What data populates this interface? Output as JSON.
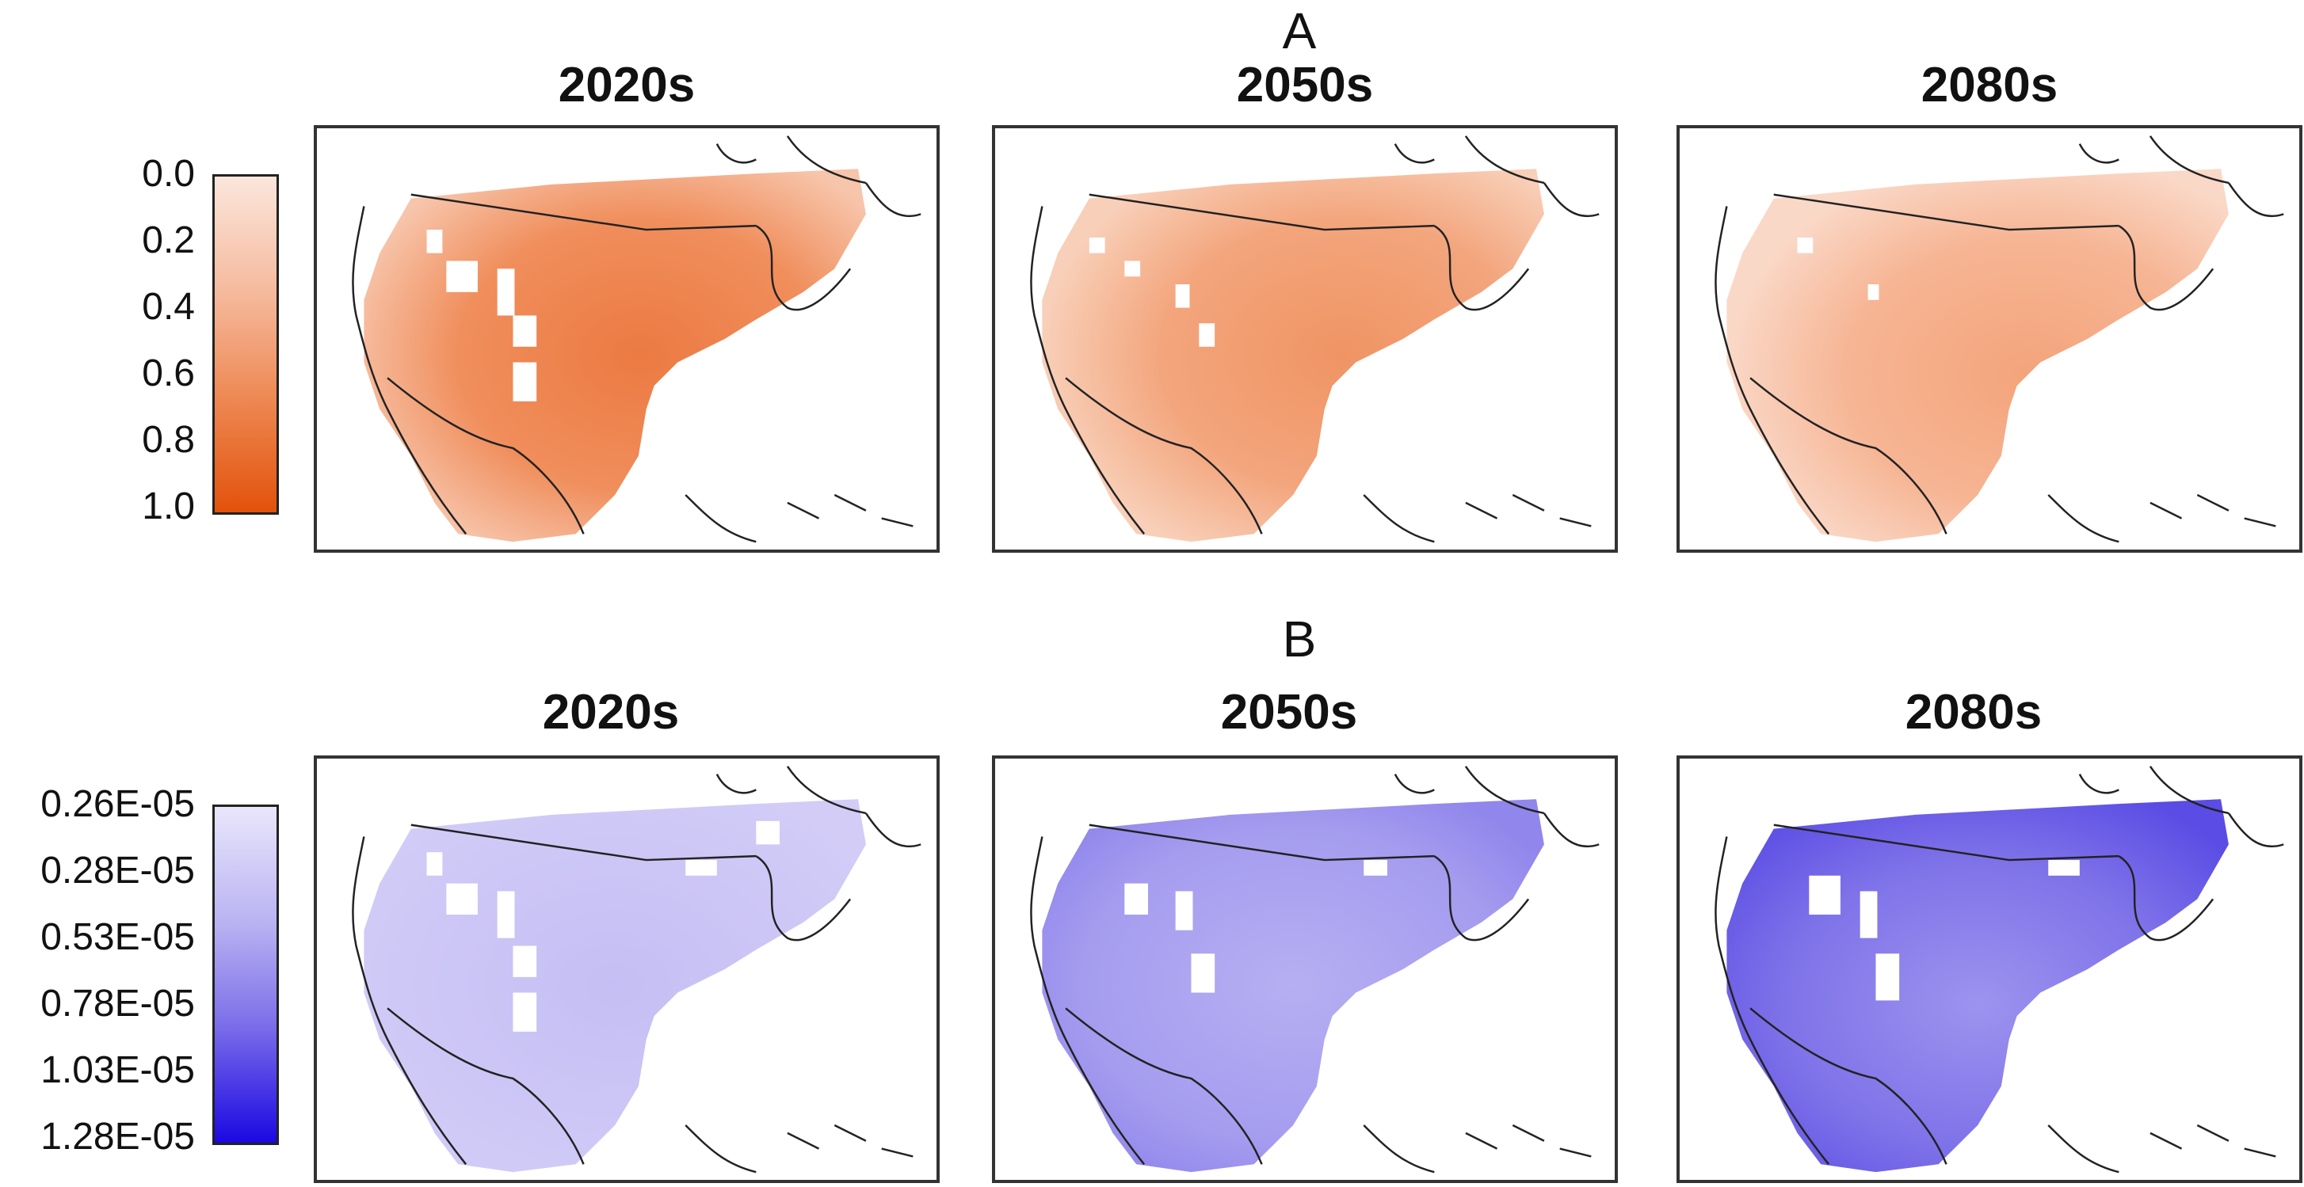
{
  "figure": {
    "rows": [
      {
        "label": "A",
        "panels": [
          {
            "title": "2020s"
          },
          {
            "title": "2050s"
          },
          {
            "title": "2080s"
          }
        ],
        "colorbar": {
          "ticks": [
            "0.0",
            "0.2",
            "0.4",
            "0.6",
            "0.8",
            "1.0"
          ],
          "color_low": "#fbe6dc",
          "color_high": "#e2520b"
        }
      },
      {
        "label": "B",
        "panels": [
          {
            "title": "2020s"
          },
          {
            "title": "2050s"
          },
          {
            "title": "2080s"
          }
        ],
        "colorbar": {
          "ticks": [
            "0.26E-05",
            "0.28E-05",
            "0.53E-05",
            "0.78E-05",
            "1.03E-05",
            "1.28E-05"
          ],
          "color_low": "#e9e6fb",
          "color_high": "#1a08e2"
        }
      }
    ]
  }
}
